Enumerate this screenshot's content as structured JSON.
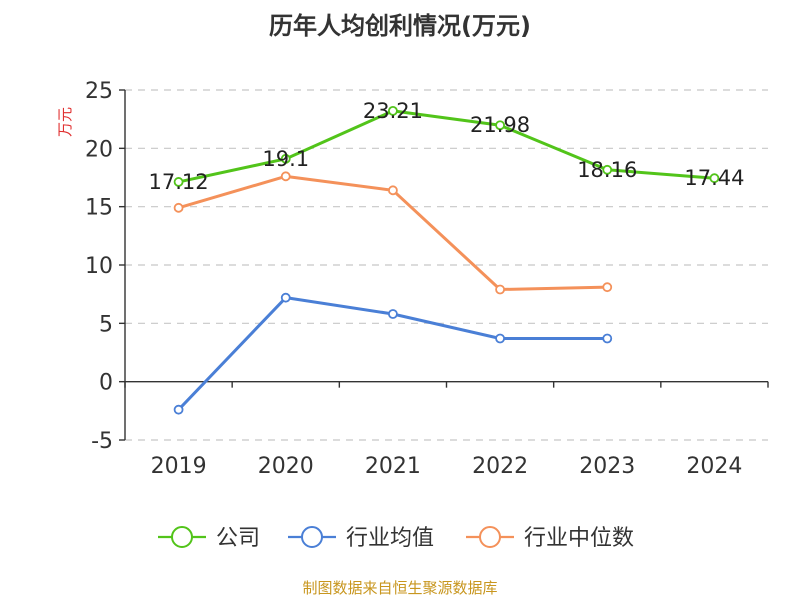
{
  "title": "历年人均创利情况(万元)",
  "source": "制图数据来自恒生聚源数据库",
  "chart_data": {
    "type": "line",
    "title": "历年人均创利情况(万元)",
    "ylabel": "万元",
    "xlabel": "",
    "categories": [
      "2019",
      "2020",
      "2021",
      "2022",
      "2023",
      "2024"
    ],
    "ylim": [
      -5,
      25
    ],
    "yticks": [
      -5,
      0,
      5,
      10,
      15,
      20,
      25
    ],
    "grid": true,
    "legend_position": "bottom",
    "series": [
      {
        "name": "公司",
        "color": "#52c41a",
        "values": [
          17.12,
          19.1,
          23.21,
          21.98,
          18.16,
          17.44
        ],
        "show_labels": true
      },
      {
        "name": "行业均值",
        "color": "#4a7fd6",
        "values": [
          -2.4,
          7.2,
          5.8,
          3.7,
          3.7,
          null
        ],
        "show_labels": false
      },
      {
        "name": "行业中位数",
        "color": "#f4915a",
        "values": [
          14.9,
          17.6,
          16.4,
          7.9,
          8.1,
          null
        ],
        "show_labels": false
      }
    ]
  }
}
